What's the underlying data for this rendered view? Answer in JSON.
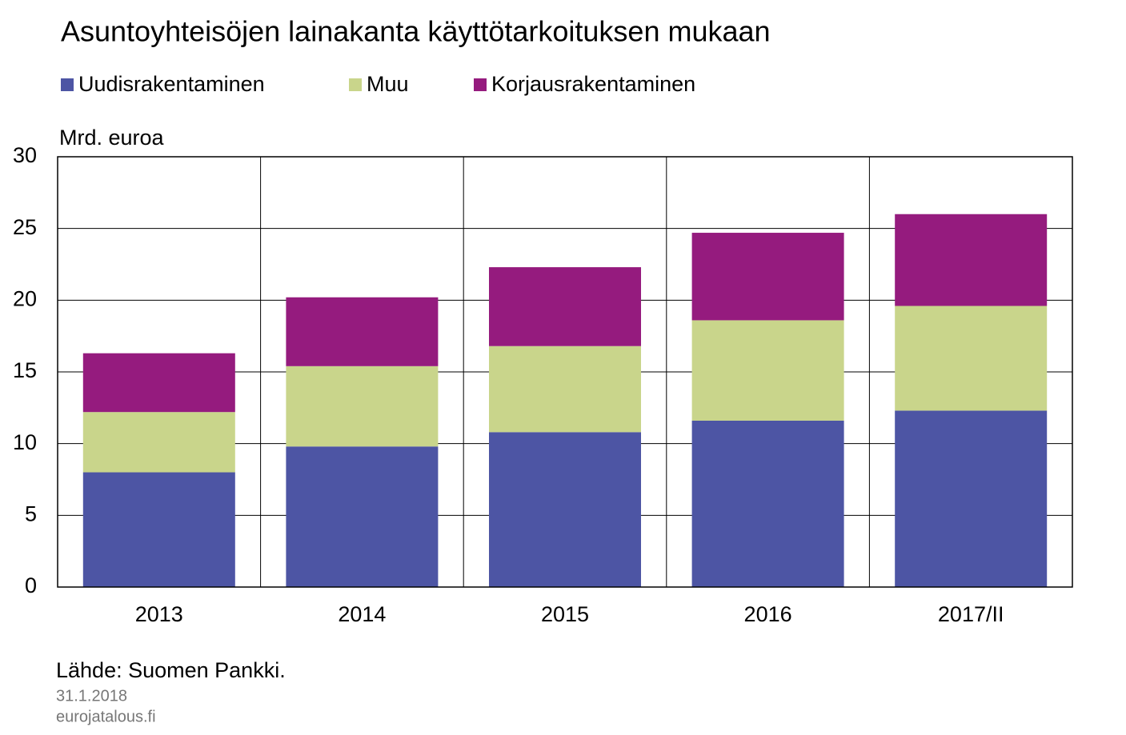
{
  "chart_data": {
    "type": "stacked-bar",
    "title": "Asuntoyhteisöjen lainakanta käyttötarkoituksen mukaan",
    "y_label": "Mrd. euroa",
    "categories": [
      "2013",
      "2014",
      "2015",
      "2016",
      "2017/II"
    ],
    "series": [
      {
        "name": "Uudisrakentaminen",
        "color": "#4d55a4",
        "values": [
          8.0,
          9.8,
          10.8,
          11.6,
          12.3
        ]
      },
      {
        "name": "Muu",
        "color": "#c9d58b",
        "values": [
          4.2,
          5.6,
          6.0,
          7.0,
          7.3
        ]
      },
      {
        "name": "Korjausrakentaminen",
        "color": "#951b7e",
        "values": [
          4.1,
          4.8,
          5.5,
          6.1,
          6.4
        ]
      }
    ],
    "ylim": [
      0,
      30
    ],
    "yticks": [
      0,
      5,
      10,
      15,
      20,
      25,
      30
    ],
    "grid": true,
    "source": "Lähde: Suomen Pankki.",
    "date": "31.1.2018",
    "site": "eurojatalous.fi"
  }
}
